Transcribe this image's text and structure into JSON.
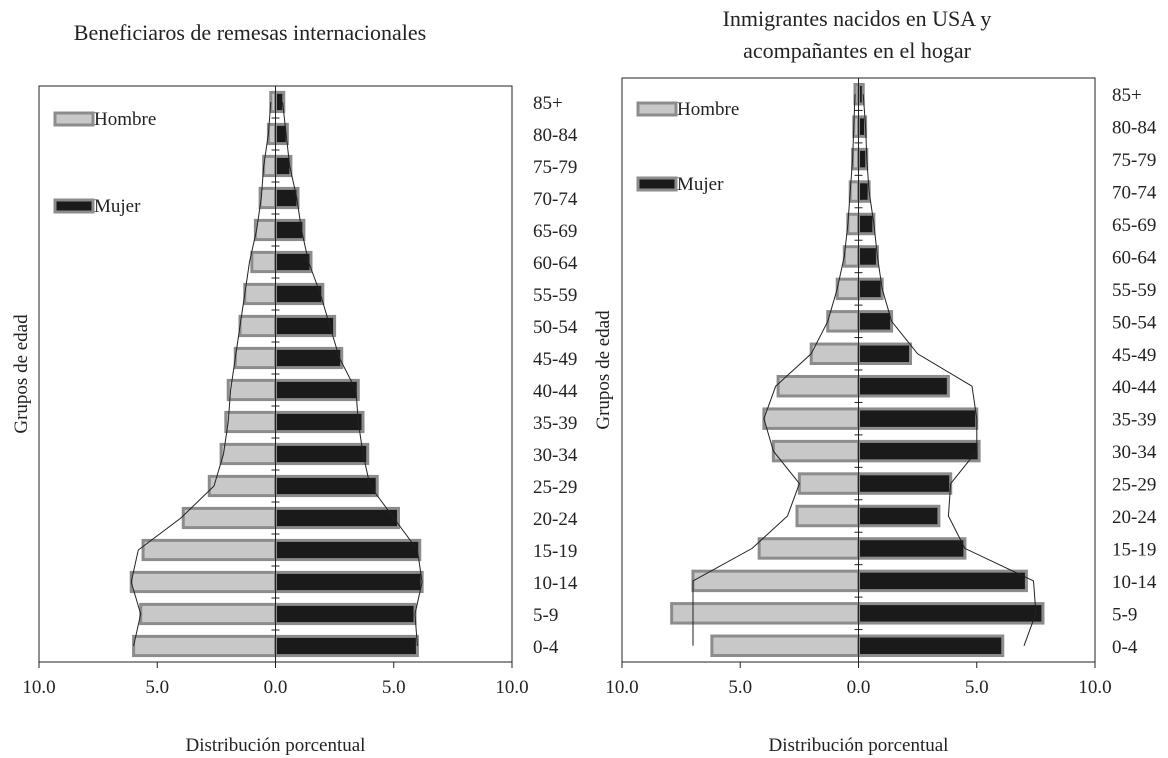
{
  "chart_data": [
    {
      "type": "bar",
      "subtype": "population-pyramid",
      "title": "Beneficiaros de remesas internacionales",
      "title_lines": [
        "Beneficiaros de remesas internacionales"
      ],
      "xlabel": "Distribución porcentual",
      "ylabel": "Grupos de edad",
      "xlim": [
        -10,
        10
      ],
      "x_ticks": [
        "10.0",
        "5.0",
        "0.0",
        "5.0",
        "10.0"
      ],
      "categories": [
        "0-4",
        "5-9",
        "10-14",
        "15-19",
        "20-24",
        "25-29",
        "30-34",
        "35-39",
        "40-44",
        "45-49",
        "50-54",
        "55-59",
        "60-64",
        "65-69",
        "70-74",
        "75-79",
        "80-84",
        "85+"
      ],
      "legend_placement": "top-left",
      "grid": false,
      "series": [
        {
          "name": "Hombre",
          "color": "#c8c8c8",
          "border": "#8c8c8c",
          "values": [
            6.0,
            5.7,
            6.1,
            5.6,
            3.9,
            2.8,
            2.3,
            2.1,
            2.0,
            1.7,
            1.5,
            1.3,
            1.0,
            0.85,
            0.65,
            0.5,
            0.3,
            0.2
          ]
        },
        {
          "name": "Mujer",
          "color": "#1a1a1a",
          "border": "#8c8c8c",
          "values": [
            6.0,
            5.9,
            6.2,
            6.1,
            5.2,
            4.3,
            3.9,
            3.7,
            3.5,
            2.8,
            2.5,
            2.0,
            1.5,
            1.2,
            0.95,
            0.65,
            0.5,
            0.35
          ]
        },
        {
          "name": "Outline",
          "type": "line",
          "color": "#222222",
          "left_values": [
            6.0,
            5.7,
            6.1,
            5.8,
            4.0,
            2.6,
            2.2,
            2.0,
            1.9,
            1.7,
            1.5,
            1.3,
            1.1,
            0.8,
            0.6,
            0.5,
            0.3,
            0.2
          ],
          "right_values": [
            6.0,
            5.9,
            6.2,
            6.0,
            5.0,
            4.0,
            3.7,
            3.5,
            3.4,
            2.7,
            2.3,
            1.9,
            1.4,
            1.1,
            0.9,
            0.6,
            0.45,
            0.3
          ]
        }
      ]
    },
    {
      "type": "bar",
      "subtype": "population-pyramid",
      "title": "Inmigrantes nacidos en USA y acompañantes en el hogar",
      "title_lines": [
        "Inmigrantes nacidos en USA y",
        "acompañantes en el hogar"
      ],
      "xlabel": "Distribución porcentual",
      "ylabel": "Grupos de edad",
      "xlim": [
        -10,
        10
      ],
      "x_ticks": [
        "10.0",
        "5.0",
        "0.0",
        "5.0",
        "10.0"
      ],
      "categories": [
        "0-4",
        "5-9",
        "10-14",
        "15-19",
        "20-24",
        "25-29",
        "30-34",
        "35-39",
        "40-44",
        "45-49",
        "50-54",
        "55-59",
        "60-64",
        "65-69",
        "70-74",
        "75-79",
        "80-84",
        "85+"
      ],
      "legend_placement": "top-left",
      "grid": false,
      "series": [
        {
          "name": "Hombre",
          "color": "#c8c8c8",
          "border": "#8c8c8c",
          "values": [
            6.2,
            7.9,
            7.0,
            4.2,
            2.6,
            2.5,
            3.6,
            4.0,
            3.4,
            2.0,
            1.3,
            0.9,
            0.6,
            0.45,
            0.35,
            0.25,
            0.2,
            0.15
          ]
        },
        {
          "name": "Mujer",
          "color": "#1a1a1a",
          "border": "#8c8c8c",
          "values": [
            6.1,
            7.8,
            7.1,
            4.5,
            3.4,
            3.9,
            5.1,
            5.0,
            3.8,
            2.2,
            1.4,
            1.0,
            0.8,
            0.65,
            0.45,
            0.35,
            0.3,
            0.2
          ]
        },
        {
          "name": "Outline",
          "type": "line",
          "color": "#222222",
          "left_values": [
            7.0,
            7.0,
            7.0,
            4.5,
            3.0,
            2.5,
            3.6,
            4.0,
            3.5,
            2.0,
            1.3,
            0.9,
            0.6,
            0.45,
            0.35,
            0.25,
            0.2,
            0.15
          ],
          "right_values": [
            7.0,
            7.5,
            7.4,
            4.5,
            3.8,
            3.9,
            5.0,
            5.0,
            4.8,
            2.5,
            1.4,
            1.0,
            0.8,
            0.65,
            0.45,
            0.35,
            0.3,
            0.2
          ]
        }
      ]
    }
  ]
}
